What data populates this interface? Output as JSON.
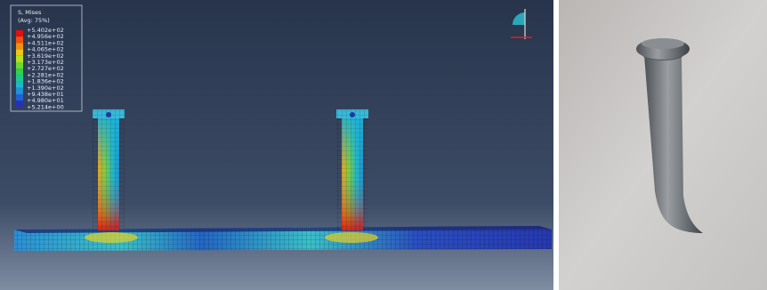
{
  "legend": {
    "title": "S, Mises",
    "subtitle": "(Avg: 75%)",
    "labels": [
      "+5.402e+02",
      "+4.956e+02",
      "+4.511e+02",
      "+4.065e+02",
      "+3.619e+02",
      "+3.173e+02",
      "+2.727e+02",
      "+2.281e+02",
      "+1.836e+02",
      "+1.390e+02",
      "+9.438e+01",
      "+4.980e+01",
      "+5.214e+00"
    ]
  }
}
